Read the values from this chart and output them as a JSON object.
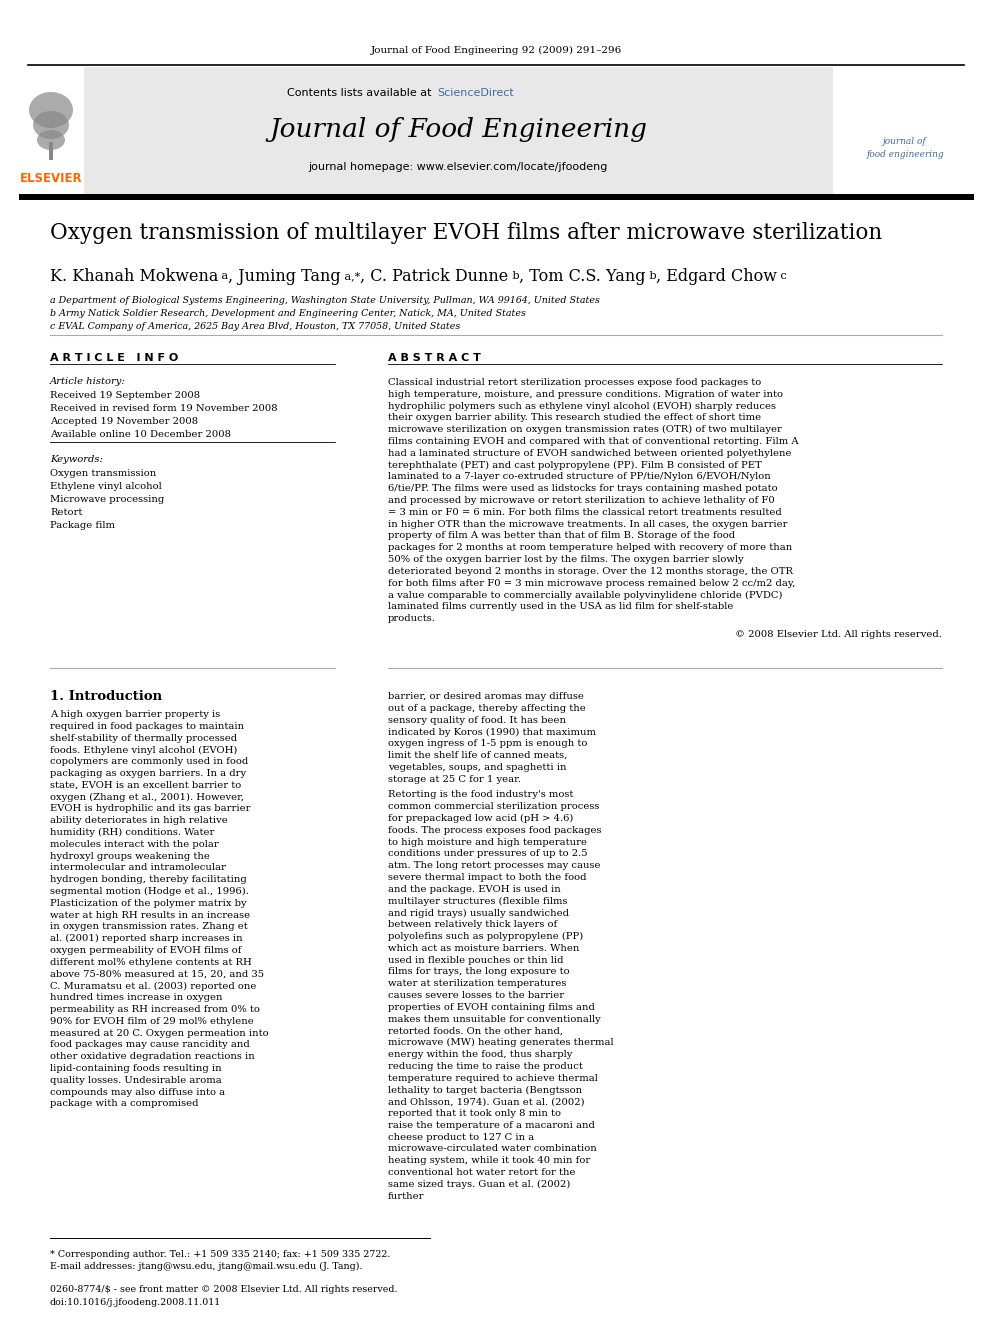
{
  "page_bg": "#ffffff",
  "journal_ref": "Journal of Food Engineering 92 (2009) 291–296",
  "header_bg": "#e8e8e8",
  "contents_text": "Contents lists available at",
  "sciencedirect_text": "ScienceDirect",
  "sciencedirect_color": "#4169aa",
  "journal_title": "Journal of Food Engineering",
  "homepage_text": "journal homepage: www.elsevier.com/locate/jfoodeng",
  "elsevier_color": "#ff6600",
  "elsevier_text": "ELSEVIER",
  "article_title": "Oxygen transmission of multilayer EVOH films after microwave sterilization",
  "affil1": "a Department of Biological Systems Engineering, Washington State University, Pullman, WA 99164, United States",
  "affil2": "b Army Natick Soldier Research, Development and Engineering Center, Natick, MA, United States",
  "affil3": "c EVAL Company of America, 2625 Bay Area Blvd, Houston, TX 77058, United States",
  "article_info_title": "A R T I C L E   I N F O",
  "abstract_title": "A B S T R A C T",
  "article_history": "Article history:",
  "received": "Received 19 September 2008",
  "revised": "Received in revised form 19 November 2008",
  "accepted": "Accepted 19 November 2008",
  "available": "Available online 10 December 2008",
  "keywords_title": "Keywords:",
  "keywords": [
    "Oxygen transmission",
    "Ethylene vinyl alcohol",
    "Microwave processing",
    "Retort",
    "Package film"
  ],
  "abstract_text": "Classical industrial retort sterilization processes expose food packages to high temperature, moisture, and pressure conditions. Migration of water into hydrophilic polymers such as ethylene vinyl alcohol (EVOH) sharply reduces their oxygen barrier ability. This research studied the effect of short time microwave sterilization on oxygen transmission rates (OTR) of two multilayer films containing EVOH and compared with that of conventional retorting. Film A had a laminated structure of EVOH sandwiched between oriented polyethylene terephthalate (PET) and cast polypropylene (PP). Film B consisted of PET laminated to a 7-layer co-extruded structure of PP/tie/Nylon 6/EVOH/Nylon 6/tie/PP. The films were used as lidstocks for trays containing mashed potato and processed by microwave or retort sterilization to achieve lethality of F0 = 3 min or F0 = 6 min. For both films the classical retort treatments resulted in higher OTR than the microwave treatments. In all cases, the oxygen barrier property of film A was better than that of film B. Storage of the food packages for 2 months at room temperature helped with recovery of more than 50% of the oxygen barrier lost by the films. The oxygen barrier slowly deteriorated beyond 2 months in storage. Over the 12 months storage, the OTR for both films after F0 = 3 min microwave process remained below 2 cc/m2 day, a value comparable to commercially available polyvinylidene chloride (PVDC) laminated films currently used in the USA as lid film for shelf-stable products.",
  "copyright": "© 2008 Elsevier Ltd. All rights reserved.",
  "intro_title": "1. Introduction",
  "intro_col1": "    A high oxygen barrier property is required in food packages to maintain shelf-stability of thermally processed foods. Ethylene vinyl alcohol (EVOH) copolymers are commonly used in food packaging as oxygen barriers. In a dry state, EVOH is an excellent barrier to oxygen (Zhang et al., 2001). However, EVOH is hydrophilic and its gas barrier ability deteriorates in high relative humidity (RH) conditions. Water molecules interact with the polar hydroxyl groups weakening the intermolecular and intramolecular hydrogen bonding, thereby facilitating segmental motion (Hodge et al., 1996). Plasticization of the polymer matrix by water at high RH results in an increase in oxygen transmission rates. Zhang et al. (2001) reported sharp increases in oxygen permeability of EVOH films of different mol% ethylene contents at RH above 75-80% measured at 15, 20, and 35 C. Muramatsu et al. (2003) reported one hundred times increase in oxygen permeability as RH increased from 0% to 90% for EVOH film of 29 mol% ethylene measured at 20 C. Oxygen permeation into food packages may cause rancidity and other oxidative degradation reactions in lipid-containing foods resulting in quality losses. Undesirable aroma compounds may also diffuse into a package with a compromised",
  "intro_col2": "barrier, or desired aromas may diffuse out of a package, thereby affecting the sensory quality of food. It has been indicated by Koros (1990) that maximum oxygen ingress of 1-5 ppm is enough to limit the shelf life of canned meats, vegetables, soups, and spaghetti in storage at 25 C for 1 year.\n    Retorting is the food industry's most common commercial sterilization process for prepackaged low acid (pH > 4.6) foods. The process exposes food packages to high moisture and high temperature conditions under pressures of up to 2.5 atm. The long retort processes may cause severe thermal impact to both the food and the package. EVOH is used in multilayer structures (flexible films and rigid trays) usually sandwiched between relatively thick layers of polyolefins such as polypropylene (PP) which act as moisture barriers. When used in flexible pouches or thin lid films for trays, the long exposure to water at sterilization temperatures causes severe losses to the barrier properties of EVOH containing films and makes them unsuitable for conventionally retorted foods. On the other hand, microwave (MW) heating generates thermal energy within the food, thus sharply reducing the time to raise the product temperature required to achieve thermal lethality to target bacteria (Bengtsson and Ohlsson, 1974). Guan et al. (2002) reported that it took only 8 min to raise the temperature of a macaroni and cheese product to 127 C in a microwave-circulated water combination heating system, while it took 40 min for conventional hot water retort for the same sized trays. Guan et al. (2002) further",
  "footnote1": "* Corresponding author. Tel.: +1 509 335 2140; fax: +1 509 335 2722.",
  "footnote2": "E-mail addresses: jtang@wsu.edu, jtang@mail.wsu.edu (J. Tang).",
  "issn_text": "0260-8774/$ - see front matter © 2008 Elsevier Ltd. All rights reserved.",
  "doi_text": "doi:10.1016/j.jfoodeng.2008.11.011"
}
